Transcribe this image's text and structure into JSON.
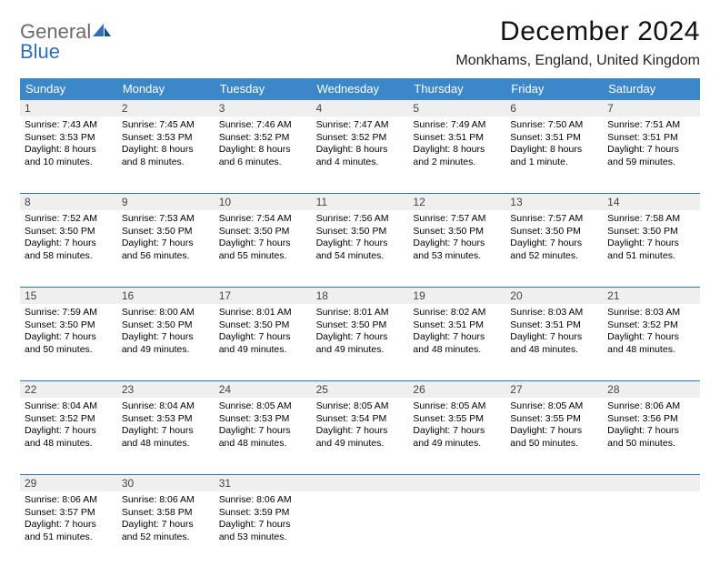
{
  "brand": {
    "name_gray": "General",
    "name_blue": "Blue"
  },
  "title": "December 2024",
  "location": "Monkhams, England, United Kingdom",
  "colors": {
    "header_bg": "#3b87c8",
    "rule": "#2f70b8",
    "daynum_bg": "#efefef",
    "logo_gray": "#6b6b6b",
    "logo_blue": "#2f70b8"
  },
  "weekdays": [
    "Sunday",
    "Monday",
    "Tuesday",
    "Wednesday",
    "Thursday",
    "Friday",
    "Saturday"
  ],
  "weeks": [
    [
      {
        "n": "1",
        "sunrise": "Sunrise: 7:43 AM",
        "sunset": "Sunset: 3:53 PM",
        "daylight": "Daylight: 8 hours and 10 minutes."
      },
      {
        "n": "2",
        "sunrise": "Sunrise: 7:45 AM",
        "sunset": "Sunset: 3:53 PM",
        "daylight": "Daylight: 8 hours and 8 minutes."
      },
      {
        "n": "3",
        "sunrise": "Sunrise: 7:46 AM",
        "sunset": "Sunset: 3:52 PM",
        "daylight": "Daylight: 8 hours and 6 minutes."
      },
      {
        "n": "4",
        "sunrise": "Sunrise: 7:47 AM",
        "sunset": "Sunset: 3:52 PM",
        "daylight": "Daylight: 8 hours and 4 minutes."
      },
      {
        "n": "5",
        "sunrise": "Sunrise: 7:49 AM",
        "sunset": "Sunset: 3:51 PM",
        "daylight": "Daylight: 8 hours and 2 minutes."
      },
      {
        "n": "6",
        "sunrise": "Sunrise: 7:50 AM",
        "sunset": "Sunset: 3:51 PM",
        "daylight": "Daylight: 8 hours and 1 minute."
      },
      {
        "n": "7",
        "sunrise": "Sunrise: 7:51 AM",
        "sunset": "Sunset: 3:51 PM",
        "daylight": "Daylight: 7 hours and 59 minutes."
      }
    ],
    [
      {
        "n": "8",
        "sunrise": "Sunrise: 7:52 AM",
        "sunset": "Sunset: 3:50 PM",
        "daylight": "Daylight: 7 hours and 58 minutes."
      },
      {
        "n": "9",
        "sunrise": "Sunrise: 7:53 AM",
        "sunset": "Sunset: 3:50 PM",
        "daylight": "Daylight: 7 hours and 56 minutes."
      },
      {
        "n": "10",
        "sunrise": "Sunrise: 7:54 AM",
        "sunset": "Sunset: 3:50 PM",
        "daylight": "Daylight: 7 hours and 55 minutes."
      },
      {
        "n": "11",
        "sunrise": "Sunrise: 7:56 AM",
        "sunset": "Sunset: 3:50 PM",
        "daylight": "Daylight: 7 hours and 54 minutes."
      },
      {
        "n": "12",
        "sunrise": "Sunrise: 7:57 AM",
        "sunset": "Sunset: 3:50 PM",
        "daylight": "Daylight: 7 hours and 53 minutes."
      },
      {
        "n": "13",
        "sunrise": "Sunrise: 7:57 AM",
        "sunset": "Sunset: 3:50 PM",
        "daylight": "Daylight: 7 hours and 52 minutes."
      },
      {
        "n": "14",
        "sunrise": "Sunrise: 7:58 AM",
        "sunset": "Sunset: 3:50 PM",
        "daylight": "Daylight: 7 hours and 51 minutes."
      }
    ],
    [
      {
        "n": "15",
        "sunrise": "Sunrise: 7:59 AM",
        "sunset": "Sunset: 3:50 PM",
        "daylight": "Daylight: 7 hours and 50 minutes."
      },
      {
        "n": "16",
        "sunrise": "Sunrise: 8:00 AM",
        "sunset": "Sunset: 3:50 PM",
        "daylight": "Daylight: 7 hours and 49 minutes."
      },
      {
        "n": "17",
        "sunrise": "Sunrise: 8:01 AM",
        "sunset": "Sunset: 3:50 PM",
        "daylight": "Daylight: 7 hours and 49 minutes."
      },
      {
        "n": "18",
        "sunrise": "Sunrise: 8:01 AM",
        "sunset": "Sunset: 3:50 PM",
        "daylight": "Daylight: 7 hours and 49 minutes."
      },
      {
        "n": "19",
        "sunrise": "Sunrise: 8:02 AM",
        "sunset": "Sunset: 3:51 PM",
        "daylight": "Daylight: 7 hours and 48 minutes."
      },
      {
        "n": "20",
        "sunrise": "Sunrise: 8:03 AM",
        "sunset": "Sunset: 3:51 PM",
        "daylight": "Daylight: 7 hours and 48 minutes."
      },
      {
        "n": "21",
        "sunrise": "Sunrise: 8:03 AM",
        "sunset": "Sunset: 3:52 PM",
        "daylight": "Daylight: 7 hours and 48 minutes."
      }
    ],
    [
      {
        "n": "22",
        "sunrise": "Sunrise: 8:04 AM",
        "sunset": "Sunset: 3:52 PM",
        "daylight": "Daylight: 7 hours and 48 minutes."
      },
      {
        "n": "23",
        "sunrise": "Sunrise: 8:04 AM",
        "sunset": "Sunset: 3:53 PM",
        "daylight": "Daylight: 7 hours and 48 minutes."
      },
      {
        "n": "24",
        "sunrise": "Sunrise: 8:05 AM",
        "sunset": "Sunset: 3:53 PM",
        "daylight": "Daylight: 7 hours and 48 minutes."
      },
      {
        "n": "25",
        "sunrise": "Sunrise: 8:05 AM",
        "sunset": "Sunset: 3:54 PM",
        "daylight": "Daylight: 7 hours and 49 minutes."
      },
      {
        "n": "26",
        "sunrise": "Sunrise: 8:05 AM",
        "sunset": "Sunset: 3:55 PM",
        "daylight": "Daylight: 7 hours and 49 minutes."
      },
      {
        "n": "27",
        "sunrise": "Sunrise: 8:05 AM",
        "sunset": "Sunset: 3:55 PM",
        "daylight": "Daylight: 7 hours and 50 minutes."
      },
      {
        "n": "28",
        "sunrise": "Sunrise: 8:06 AM",
        "sunset": "Sunset: 3:56 PM",
        "daylight": "Daylight: 7 hours and 50 minutes."
      }
    ],
    [
      {
        "n": "29",
        "sunrise": "Sunrise: 8:06 AM",
        "sunset": "Sunset: 3:57 PM",
        "daylight": "Daylight: 7 hours and 51 minutes."
      },
      {
        "n": "30",
        "sunrise": "Sunrise: 8:06 AM",
        "sunset": "Sunset: 3:58 PM",
        "daylight": "Daylight: 7 hours and 52 minutes."
      },
      {
        "n": "31",
        "sunrise": "Sunrise: 8:06 AM",
        "sunset": "Sunset: 3:59 PM",
        "daylight": "Daylight: 7 hours and 53 minutes."
      },
      null,
      null,
      null,
      null
    ]
  ]
}
